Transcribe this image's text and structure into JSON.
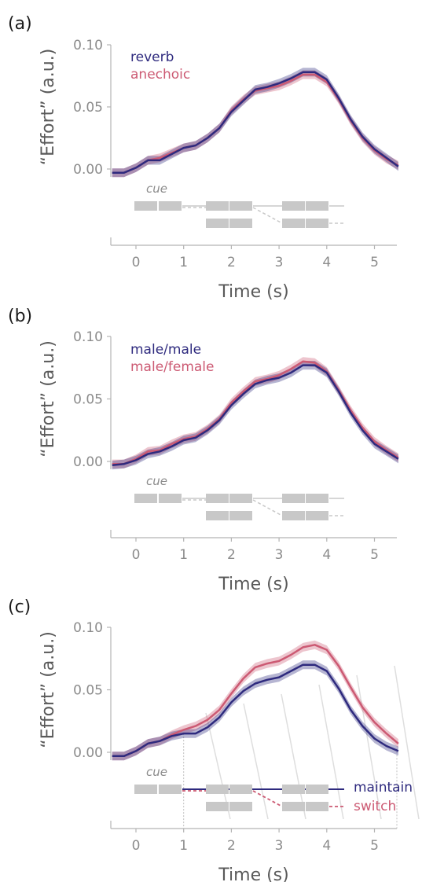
{
  "colors": {
    "blue": "#2e2a7e",
    "pink": "#cc5a73",
    "axis": "#b3b3b3",
    "gray_block": "#c8c8c8"
  },
  "chart_data": [
    {
      "type": "line",
      "panel_label": "(a)",
      "xlabel": "Time (s)",
      "ylabel": "“Effort” (a.u.)",
      "xlim": [
        -0.5,
        5.5
      ],
      "ylim": [
        0,
        0.1
      ],
      "xticks": [
        "0",
        "1",
        "2",
        "3",
        "4",
        "5"
      ],
      "yticks": [
        "0.00",
        "0.05",
        "0.10"
      ],
      "cue_label": "cue",
      "legend": "top-left",
      "series": [
        {
          "name": "reverb",
          "color": "#2e2a7e",
          "x": [
            -0.5,
            -0.25,
            0,
            0.25,
            0.5,
            0.75,
            1,
            1.25,
            1.5,
            1.75,
            2,
            2.25,
            2.5,
            2.75,
            3,
            3.25,
            3.5,
            3.75,
            4,
            4.25,
            4.5,
            4.75,
            5,
            5.25,
            5.5
          ],
          "y": [
            -0.003,
            -0.003,
            0.001,
            0.007,
            0.007,
            0.012,
            0.017,
            0.019,
            0.025,
            0.033,
            0.046,
            0.055,
            0.064,
            0.066,
            0.069,
            0.073,
            0.078,
            0.078,
            0.072,
            0.057,
            0.04,
            0.026,
            0.016,
            0.009,
            0.002
          ]
        },
        {
          "name": "anechoic",
          "color": "#cc5a73",
          "x": [
            -0.5,
            -0.25,
            0,
            0.25,
            0.5,
            0.75,
            1,
            1.25,
            1.5,
            1.75,
            2,
            2.25,
            2.5,
            2.75,
            3,
            3.25,
            3.5,
            3.75,
            4,
            4.25,
            4.5,
            4.75,
            5,
            5.25,
            5.5
          ],
          "y": [
            -0.003,
            -0.003,
            0.001,
            0.007,
            0.009,
            0.013,
            0.017,
            0.019,
            0.025,
            0.033,
            0.047,
            0.056,
            0.063,
            0.065,
            0.067,
            0.071,
            0.076,
            0.076,
            0.07,
            0.056,
            0.039,
            0.025,
            0.015,
            0.008,
            0.003
          ]
        }
      ]
    },
    {
      "type": "line",
      "panel_label": "(b)",
      "xlabel": "Time (s)",
      "ylabel": "“Effort” (a.u.)",
      "xlim": [
        -0.5,
        5.5
      ],
      "ylim": [
        0,
        0.1
      ],
      "xticks": [
        "0",
        "1",
        "2",
        "3",
        "4",
        "5"
      ],
      "yticks": [
        "0.00",
        "0.05",
        "0.10"
      ],
      "cue_label": "cue",
      "legend": "top-left",
      "series": [
        {
          "name": "male/male",
          "color": "#2e2a7e",
          "x": [
            -0.5,
            -0.25,
            0,
            0.25,
            0.5,
            0.75,
            1,
            1.25,
            1.5,
            1.75,
            2,
            2.25,
            2.5,
            2.75,
            3,
            3.25,
            3.5,
            3.75,
            4,
            4.25,
            4.5,
            4.75,
            5,
            5.25,
            5.5
          ],
          "y": [
            -0.003,
            -0.002,
            0.001,
            0.006,
            0.008,
            0.012,
            0.017,
            0.019,
            0.025,
            0.033,
            0.045,
            0.054,
            0.062,
            0.065,
            0.067,
            0.071,
            0.077,
            0.077,
            0.071,
            0.056,
            0.039,
            0.025,
            0.014,
            0.008,
            0.002
          ]
        },
        {
          "name": "male/female",
          "color": "#cc5a73",
          "x": [
            -0.5,
            -0.25,
            0,
            0.25,
            0.5,
            0.75,
            1,
            1.25,
            1.5,
            1.75,
            2,
            2.25,
            2.5,
            2.75,
            3,
            3.25,
            3.5,
            3.75,
            4,
            4.25,
            4.5,
            4.75,
            5,
            5.25,
            5.5
          ],
          "y": [
            -0.002,
            -0.002,
            0.002,
            0.008,
            0.009,
            0.014,
            0.018,
            0.02,
            0.026,
            0.034,
            0.047,
            0.056,
            0.064,
            0.066,
            0.069,
            0.074,
            0.08,
            0.079,
            0.072,
            0.057,
            0.041,
            0.027,
            0.016,
            0.009,
            0.003
          ]
        }
      ]
    },
    {
      "type": "line",
      "panel_label": "(c)",
      "xlabel": "Time (s)",
      "ylabel": "“Effort” (a.u.)",
      "xlim": [
        -0.5,
        5.5
      ],
      "ylim": [
        0,
        0.1
      ],
      "xticks": [
        "0",
        "1",
        "2",
        "3",
        "4",
        "5"
      ],
      "yticks": [
        "0.00",
        "0.05",
        "0.10"
      ],
      "cue_label": "cue",
      "legend": "right",
      "series": [
        {
          "name": "maintain",
          "color": "#2e2a7e",
          "x": [
            -0.5,
            -0.25,
            0,
            0.25,
            0.5,
            0.75,
            1,
            1.25,
            1.5,
            1.75,
            2,
            2.25,
            2.5,
            2.75,
            3,
            3.25,
            3.5,
            3.75,
            4,
            4.25,
            4.5,
            4.75,
            5,
            5.25,
            5.5
          ],
          "y": [
            -0.003,
            -0.003,
            0.001,
            0.007,
            0.009,
            0.013,
            0.015,
            0.015,
            0.02,
            0.028,
            0.04,
            0.049,
            0.055,
            0.058,
            0.06,
            0.065,
            0.07,
            0.07,
            0.065,
            0.051,
            0.034,
            0.021,
            0.011,
            0.005,
            0.001
          ]
        },
        {
          "name": "switch",
          "color": "#cc5a73",
          "x": [
            -0.5,
            -0.25,
            0,
            0.25,
            0.5,
            0.75,
            1,
            1.25,
            1.5,
            1.75,
            2,
            2.25,
            2.5,
            2.75,
            3,
            3.25,
            3.5,
            3.75,
            4,
            4.25,
            4.5,
            4.75,
            5,
            5.25,
            5.5
          ],
          "y": [
            -0.003,
            -0.003,
            0.001,
            0.007,
            0.009,
            0.014,
            0.018,
            0.021,
            0.026,
            0.034,
            0.047,
            0.059,
            0.068,
            0.071,
            0.073,
            0.078,
            0.084,
            0.086,
            0.082,
            0.069,
            0.052,
            0.036,
            0.024,
            0.015,
            0.007
          ]
        }
      ]
    }
  ]
}
